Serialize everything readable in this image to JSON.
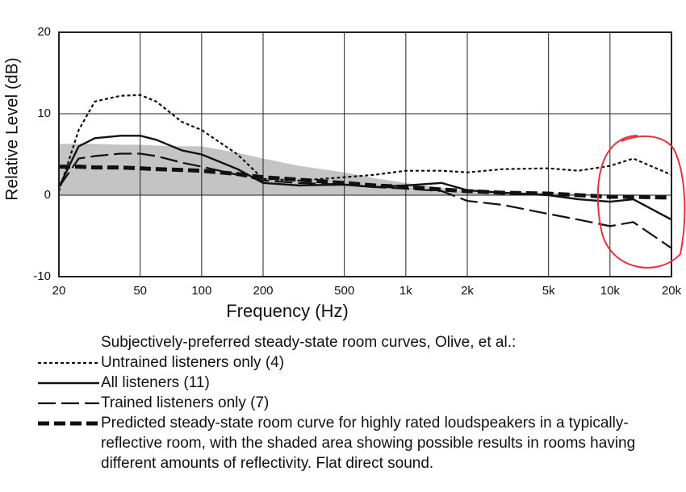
{
  "chart_data": {
    "type": "line",
    "xlabel": "Frequency (Hz)",
    "ylabel": "Relative Level (dB)",
    "legend_title": "Subjectively-preferred steady-state room curves, Olive, et al.:",
    "xscale": "log",
    "grid": true,
    "x": [
      20,
      25,
      30,
      40,
      50,
      60,
      80,
      100,
      150,
      200,
      300,
      500,
      700,
      1000,
      1500,
      2000,
      3000,
      5000,
      7000,
      10000,
      13000,
      20000
    ],
    "series": [
      {
        "name": "Untrained listeners only (4)",
        "color": "#111111",
        "dash": "dotted",
        "values": [
          0.5,
          8,
          11.5,
          12.2,
          12.3,
          11.5,
          9,
          8,
          5,
          2,
          1.8,
          2.2,
          2.5,
          3,
          3,
          2.8,
          3.2,
          3.3,
          3,
          3.6,
          4.5,
          2.5
        ]
      },
      {
        "name": "All listeners (11)",
        "color": "#111111",
        "dash": "solid",
        "values": [
          1,
          6,
          7,
          7.3,
          7.3,
          6.8,
          5.5,
          5,
          3.2,
          1.5,
          1.2,
          1.3,
          1,
          1.2,
          1.5,
          0.6,
          0.3,
          0,
          -0.5,
          -0.8,
          -0.5,
          -3
        ]
      },
      {
        "name": "Trained listeners only (7)",
        "color": "#111111",
        "dash": "long-dash",
        "values": [
          1,
          4.5,
          4.8,
          5.1,
          5.1,
          4.8,
          4,
          3.5,
          2.5,
          1.8,
          1.5,
          1.3,
          1,
          0.8,
          0.5,
          -0.7,
          -1.2,
          -2.3,
          -3,
          -3.8,
          -3.3,
          -6.5
        ]
      },
      {
        "name": "Predicted steady-state room curve for highly rated loudspeakers in a typically-reflective room, with the shaded area showing possible results in rooms having different amounts of reflectivity.  Flat direct sound.",
        "color": "#111111",
        "dash": "thick-dash",
        "values": [
          3.5,
          3.5,
          3.4,
          3.4,
          3.3,
          3.2,
          3.1,
          3,
          2.6,
          2.2,
          1.9,
          1.5,
          1.2,
          1,
          0.7,
          0.5,
          0.3,
          0.2,
          0,
          -0.2,
          -0.2,
          -0.3
        ]
      }
    ],
    "band": {
      "color": "#c4c4c4",
      "values": [
        6.3,
        6.3,
        6.3,
        6.2,
        6.2,
        6.1,
        6,
        6,
        5.2,
        4.5,
        3.6,
        2.8,
        2.1,
        1.5,
        0.9,
        0.5,
        0.4,
        0.3,
        0.2,
        0.1,
        0.1,
        0
      ]
    },
    "xlim": [
      20,
      20000
    ],
    "xticks": [
      20,
      50,
      100,
      200,
      500,
      {
        "value": 1000,
        "label": "1k"
      },
      {
        "value": 2000,
        "label": "2k"
      },
      {
        "value": 5000,
        "label": "5k"
      },
      {
        "value": 10000,
        "label": "10k"
      },
      {
        "value": 20000,
        "label": "20k"
      }
    ],
    "ylim": [
      -10,
      20
    ],
    "yticks": [
      -10,
      0,
      10,
      20
    ]
  }
}
